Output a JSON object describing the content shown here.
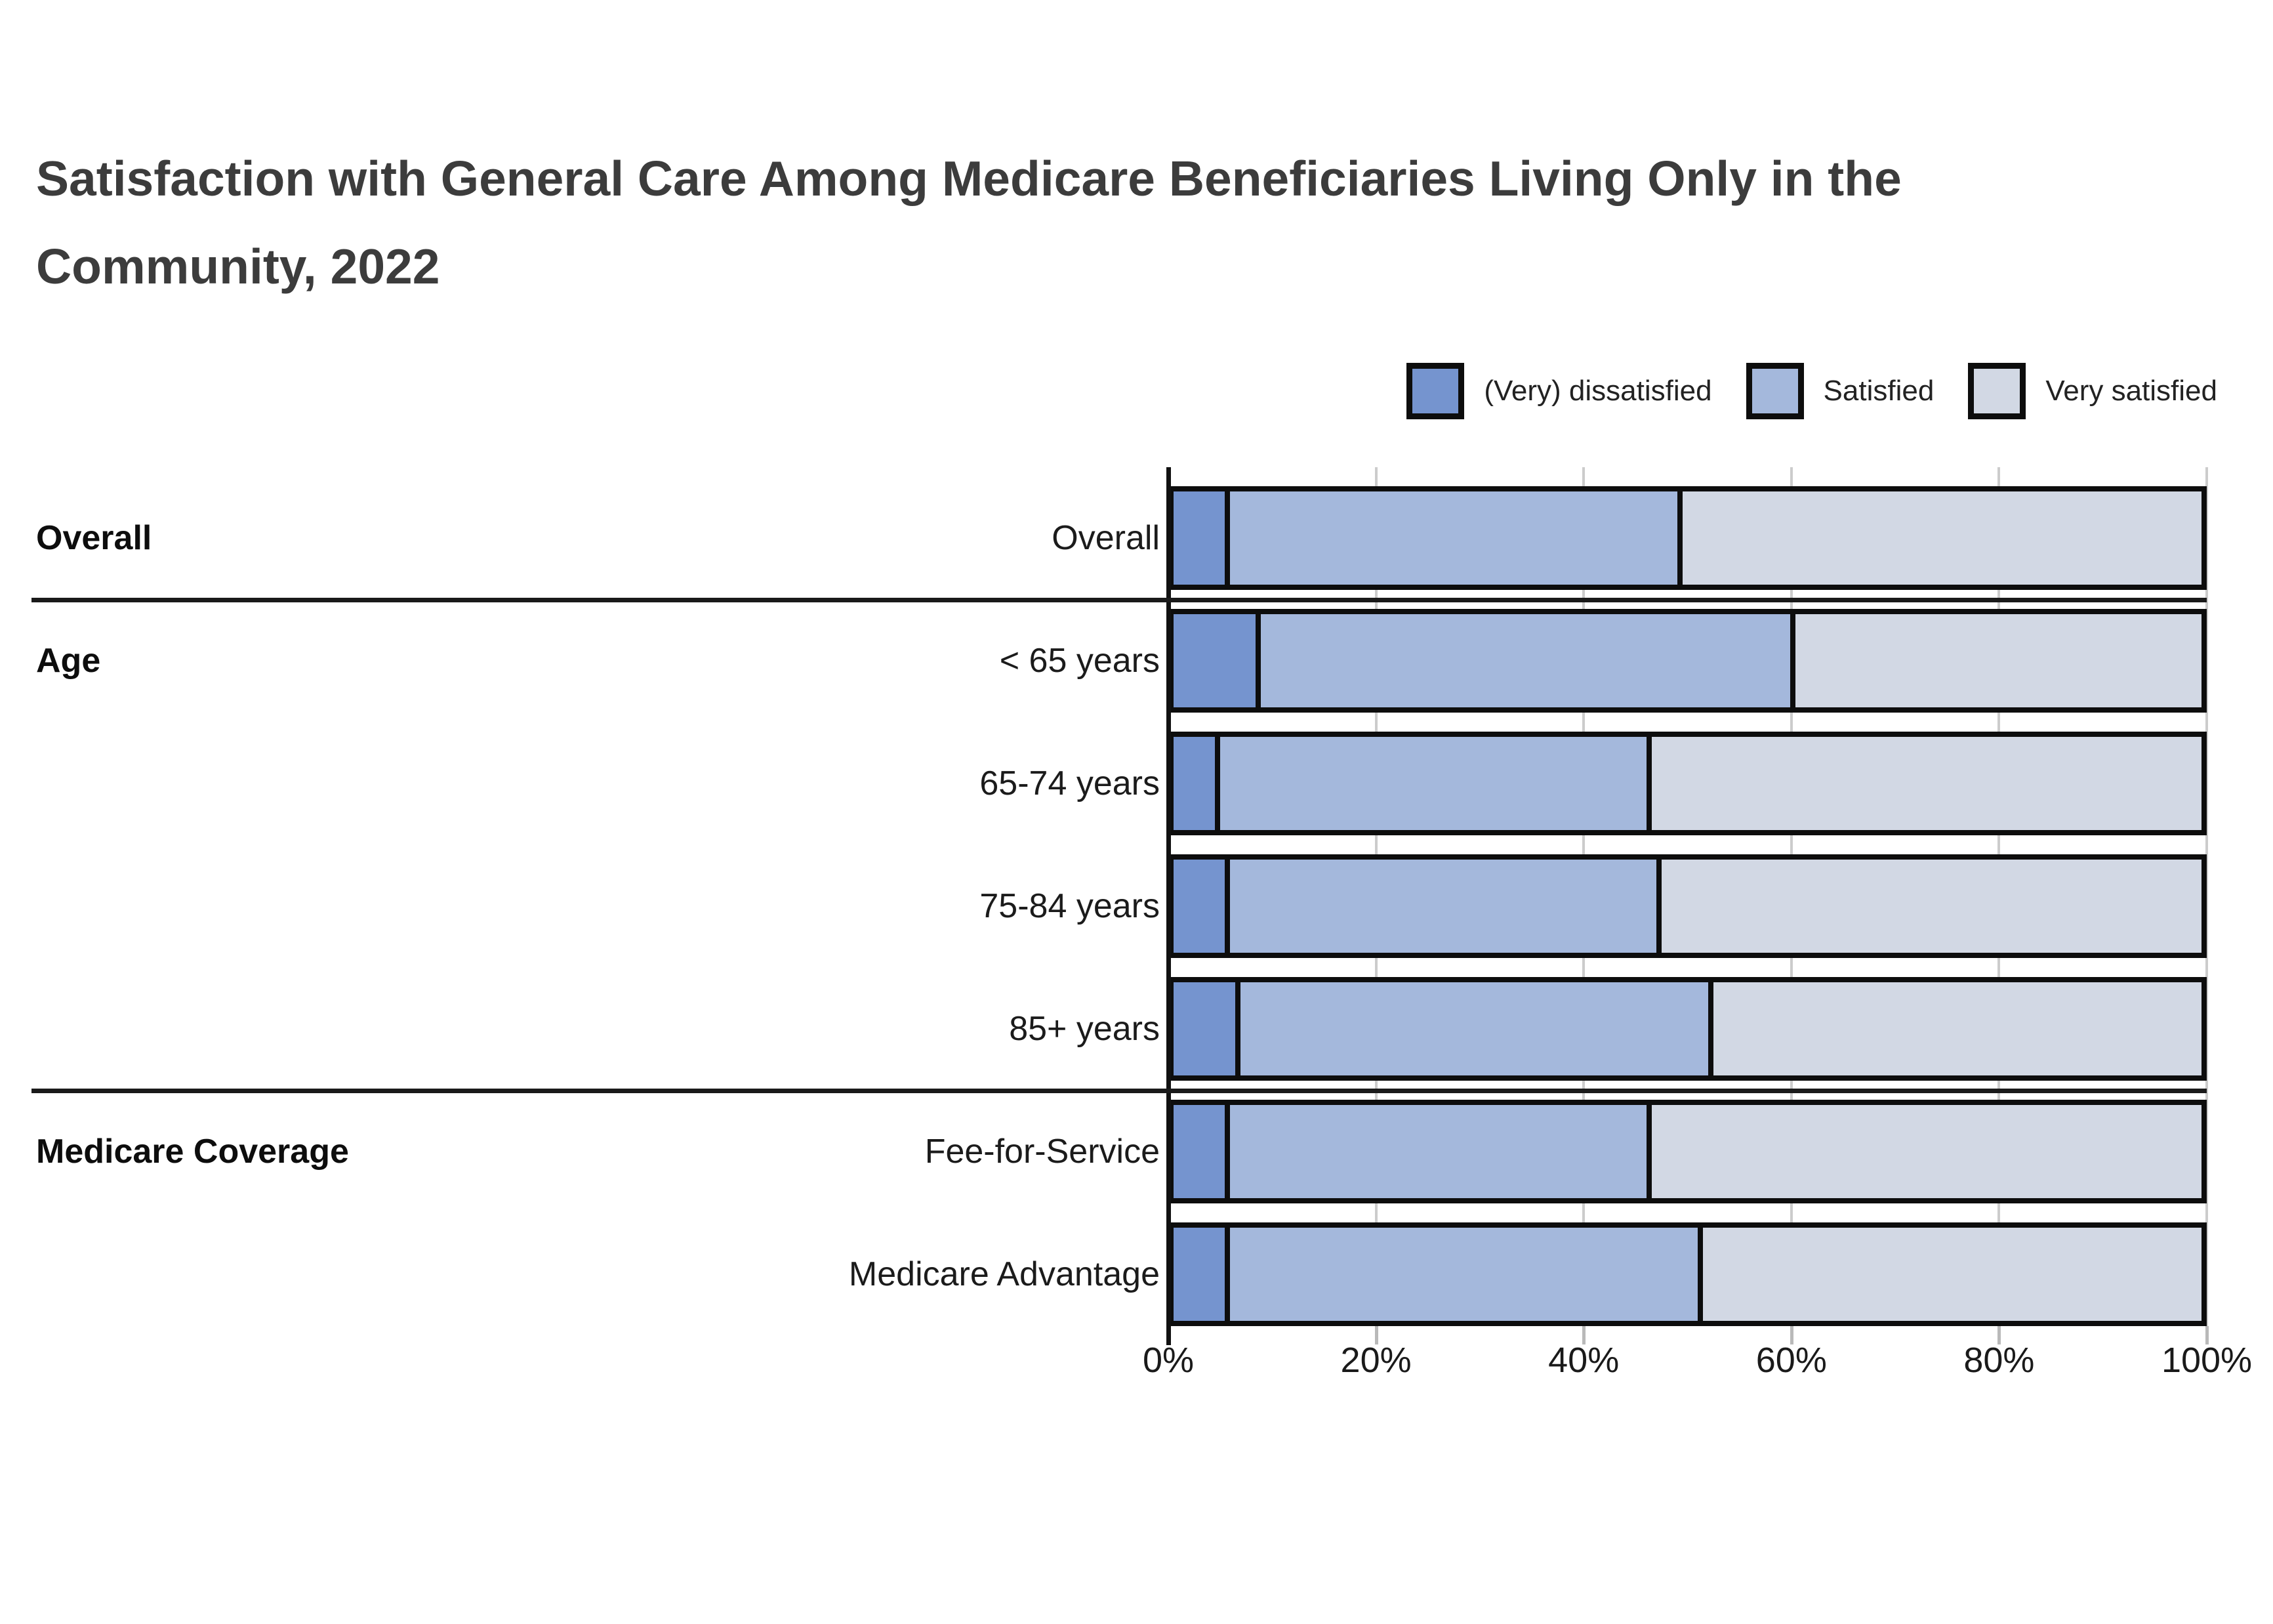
{
  "title": {
    "lines": [
      "Satisfaction with General Care Among Medicare Beneficiaries Living Only in the",
      "Community, 2022"
    ]
  },
  "legend": {
    "items": [
      {
        "label": "(Very) dissatisfied",
        "color": "#7594CF"
      },
      {
        "label": "Satisfied",
        "color": "#A4B8DC"
      },
      {
        "label": "Very satisfied",
        "color": "#D2D8E4"
      }
    ]
  },
  "chart_data": {
    "type": "bar",
    "orientation": "horizontal",
    "stacked": true,
    "title": "Satisfaction with General Care Among Medicare Beneficiaries Living Only in the Community, 2022",
    "series_names": [
      "(Very) dissatisfied",
      "Satisfied",
      "Very satisfied"
    ],
    "colors": [
      "#7594CF",
      "#A4B8DC",
      "#D2D8E4"
    ],
    "groups": [
      {
        "header": "Overall",
        "rows": [
          {
            "label": "Overall",
            "values": [
              5,
              44,
              51
            ]
          }
        ]
      },
      {
        "header": "Age",
        "rows": [
          {
            "label": "< 65 years",
            "values": [
              8,
              52,
              40
            ]
          },
          {
            "label": "65-74 years",
            "values": [
              4,
              42,
              54
            ]
          },
          {
            "label": "75-84 years",
            "values": [
              5,
              42,
              53
            ]
          },
          {
            "label": "85+ years",
            "values": [
              6,
              46,
              48
            ]
          }
        ]
      },
      {
        "header": "Medicare Coverage",
        "rows": [
          {
            "label": "Fee-for-Service",
            "values": [
              5,
              41,
              54
            ]
          },
          {
            "label": "Medicare Advantage",
            "values": [
              5,
              46,
              49
            ]
          }
        ]
      }
    ],
    "x_axis": {
      "tick_labels": [
        "0%",
        "20%",
        "40%",
        "60%",
        "80%",
        "100%"
      ],
      "tick_values": [
        0,
        20,
        40,
        60,
        80,
        100
      ],
      "min": 0,
      "max": 100
    },
    "grid": true,
    "legend_position": "top-right"
  }
}
